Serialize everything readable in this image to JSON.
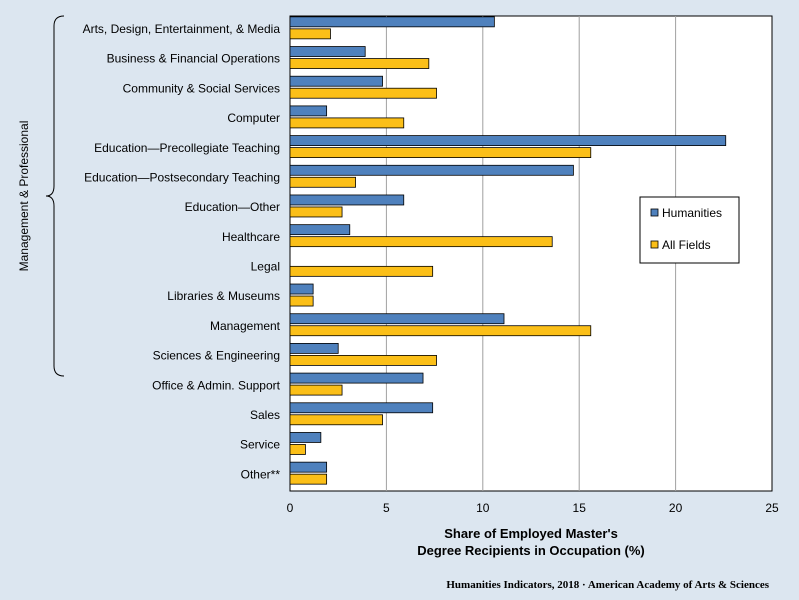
{
  "chart_data": {
    "type": "bar",
    "orientation": "horizontal",
    "categories": [
      "Arts, Design, Entertainment, & Media",
      "Business & Financial Operations",
      "Community & Social Services",
      "Computer",
      "Education—Precollegiate Teaching",
      "Education—Postsecondary Teaching",
      "Education—Other",
      "Healthcare",
      "Legal",
      "Libraries & Museums",
      "Management",
      "Sciences & Engineering",
      "Office & Admin. Support",
      "Sales",
      "Service",
      "Other**"
    ],
    "series": [
      {
        "name": "Humanities",
        "color": "#4f81bd",
        "values": [
          10.6,
          3.9,
          4.8,
          1.9,
          22.6,
          14.7,
          5.9,
          3.1,
          0,
          1.2,
          11.1,
          2.5,
          6.9,
          7.4,
          1.6,
          1.9
        ]
      },
      {
        "name": "All Fields",
        "color": "#fbbf18",
        "values": [
          2.1,
          7.2,
          7.6,
          5.9,
          15.6,
          3.4,
          2.7,
          13.6,
          7.4,
          1.2,
          15.6,
          7.6,
          2.7,
          4.8,
          0.8,
          1.9
        ]
      }
    ],
    "xlim": [
      0,
      25
    ],
    "xticks": [
      0,
      5,
      10,
      15,
      20,
      25
    ],
    "xlabel_lines": [
      "Share of Employed Master's",
      "Degree Recipients in Occupation (%)"
    ],
    "group_label": "Management  & Professional",
    "grid": true,
    "legend_position": "right"
  },
  "footer": "Humanities  Indicators, 2018 · American Academy of Arts & Sciences",
  "colors": {
    "background": "#dce6f0",
    "plot_background": "#ffffff",
    "grid": "#a0a0a0"
  }
}
